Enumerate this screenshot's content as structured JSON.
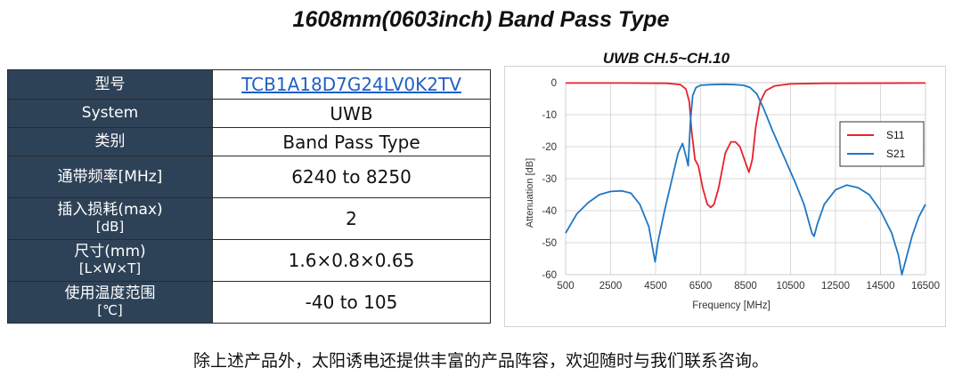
{
  "page": {
    "title": "1608mm(0603inch) Band Pass Type",
    "footer": "除上述产品外，太阳诱电还提供丰富的产品阵容，欢迎随时与我们联系咨询。"
  },
  "spec_table": {
    "rows": [
      {
        "key": "型号",
        "key_sub": "",
        "value": "TCB1A18D7G24LV0K2TV",
        "link": true
      },
      {
        "key": "System",
        "key_sub": "",
        "value": "UWB",
        "link": false
      },
      {
        "key": "类别",
        "key_sub": "",
        "value": "Band Pass Type",
        "link": false
      },
      {
        "key": "通带频率[MHz]",
        "key_sub": "",
        "value": "6240 to 8250",
        "link": false
      },
      {
        "key": "插入损耗(max)",
        "key_sub": "[dB]",
        "value": "2",
        "link": false
      },
      {
        "key": "尺寸(mm)",
        "key_sub": "[L×W×T]",
        "value": "1.6×0.8×0.65",
        "link": false
      },
      {
        "key": "使用温度范围",
        "key_sub": "[℃]",
        "value": "-40 to 105",
        "link": false
      }
    ]
  },
  "chart_data": {
    "type": "line",
    "title": "UWB CH.5~CH.10",
    "xlabel": "Frequency [MHz]",
    "ylabel": "Attenuation [dB]",
    "xlim": [
      500,
      16500
    ],
    "ylim": [
      -60,
      0
    ],
    "xticks": [
      500,
      2500,
      4500,
      6500,
      8500,
      10500,
      12500,
      14500,
      16500
    ],
    "yticks": [
      0,
      -10,
      -20,
      -30,
      -40,
      -50,
      -60
    ],
    "grid": true,
    "legend_position": "right",
    "series": [
      {
        "name": "S11",
        "color": "#e8212a",
        "points": [
          [
            500,
            -0.1
          ],
          [
            3000,
            -0.1
          ],
          [
            5000,
            -0.2
          ],
          [
            5600,
            -0.6
          ],
          [
            5850,
            -2
          ],
          [
            6000,
            -6
          ],
          [
            6100,
            -15
          ],
          [
            6250,
            -24
          ],
          [
            6400,
            -26
          ],
          [
            6600,
            -33
          ],
          [
            6800,
            -38
          ],
          [
            6950,
            -39
          ],
          [
            7100,
            -38
          ],
          [
            7300,
            -33
          ],
          [
            7600,
            -22
          ],
          [
            7850,
            -18.5
          ],
          [
            8050,
            -18.5
          ],
          [
            8250,
            -20
          ],
          [
            8450,
            -24
          ],
          [
            8650,
            -28
          ],
          [
            8800,
            -24
          ],
          [
            8950,
            -14
          ],
          [
            9150,
            -6
          ],
          [
            9400,
            -2.5
          ],
          [
            9800,
            -1
          ],
          [
            10500,
            -0.4
          ],
          [
            12000,
            -0.2
          ],
          [
            16500,
            -0.1
          ]
        ]
      },
      {
        "name": "S21",
        "color": "#1f77c4",
        "points": [
          [
            500,
            -47
          ],
          [
            1000,
            -41
          ],
          [
            1500,
            -37.5
          ],
          [
            2000,
            -35
          ],
          [
            2500,
            -34
          ],
          [
            3000,
            -33.8
          ],
          [
            3400,
            -34.5
          ],
          [
            3800,
            -38
          ],
          [
            4200,
            -45
          ],
          [
            4400,
            -53
          ],
          [
            4480,
            -56
          ],
          [
            4600,
            -50
          ],
          [
            4900,
            -40
          ],
          [
            5200,
            -31
          ],
          [
            5500,
            -22
          ],
          [
            5700,
            -19
          ],
          [
            5850,
            -23
          ],
          [
            5950,
            -26
          ],
          [
            6050,
            -12
          ],
          [
            6150,
            -4
          ],
          [
            6300,
            -1.5
          ],
          [
            6500,
            -0.8
          ],
          [
            7000,
            -0.6
          ],
          [
            7500,
            -0.5
          ],
          [
            8000,
            -0.6
          ],
          [
            8400,
            -0.8
          ],
          [
            8700,
            -1.5
          ],
          [
            9000,
            -3.5
          ],
          [
            9300,
            -8
          ],
          [
            9700,
            -15
          ],
          [
            10200,
            -23
          ],
          [
            10700,
            -31
          ],
          [
            11100,
            -38
          ],
          [
            11450,
            -47
          ],
          [
            11550,
            -48
          ],
          [
            11700,
            -44
          ],
          [
            12000,
            -38
          ],
          [
            12500,
            -33.5
          ],
          [
            13000,
            -32
          ],
          [
            13500,
            -32.8
          ],
          [
            14000,
            -35
          ],
          [
            14500,
            -40
          ],
          [
            15000,
            -47
          ],
          [
            15300,
            -54
          ],
          [
            15450,
            -60
          ],
          [
            15600,
            -56
          ],
          [
            15900,
            -48
          ],
          [
            16200,
            -42
          ],
          [
            16500,
            -38
          ]
        ]
      }
    ]
  }
}
